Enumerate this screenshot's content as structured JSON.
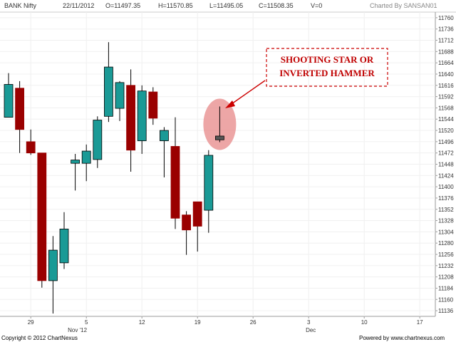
{
  "header": {
    "symbol": "BANK Nifty",
    "date": "22/11/2012",
    "open": "O=11497.35",
    "high": "H=11570.85",
    "low": "L=11495.05",
    "close": "C=11508.35",
    "volume": "V=0",
    "charted_by": "Charted By SANSAN01"
  },
  "footer": {
    "copyright": "Copyright © 2012 ChartNexus",
    "powered": "Powered by www.chartnexus.com"
  },
  "colors": {
    "up": "#1a9a96",
    "down": "#9a0000",
    "highlight_candle": "#555555",
    "annotation": "#cc0000",
    "ellipse": "#e89090"
  },
  "chart_data": {
    "type": "candlestick",
    "y_ticks": [
      11136,
      11160,
      11184,
      11208,
      11232,
      11256,
      11280,
      11304,
      11328,
      11352,
      11376,
      11400,
      11424,
      11448,
      11472,
      11496,
      11520,
      11544,
      11568,
      11592,
      11616,
      11640,
      11664,
      11688,
      11712,
      11736,
      11760
    ],
    "x_ticks": [
      {
        "label": "29",
        "slot": 2
      },
      {
        "label": "5",
        "slot": 7
      },
      {
        "label": "12",
        "slot": 12
      },
      {
        "label": "19",
        "slot": 17
      },
      {
        "label": "26",
        "slot": 22
      },
      {
        "label": "3",
        "slot": 27
      },
      {
        "label": "10",
        "slot": 32
      },
      {
        "label": "17",
        "slot": 37
      }
    ],
    "month_labels": [
      {
        "label": "Nov '12",
        "slot": 6
      },
      {
        "label": "Dec",
        "slot": 27
      }
    ],
    "candles": [
      {
        "o": 11548,
        "h": 11642,
        "l": 11548,
        "c": 11618
      },
      {
        "o": 11610,
        "h": 11625,
        "l": 11472,
        "c": 11522
      },
      {
        "o": 11496,
        "h": 11522,
        "l": 11468,
        "c": 11472
      },
      {
        "o": 11472,
        "h": 11472,
        "l": 11185,
        "c": 11200
      },
      {
        "o": 11200,
        "h": 11295,
        "l": 11130,
        "c": 11265
      },
      {
        "o": 11238,
        "h": 11346,
        "l": 11225,
        "c": 11310
      },
      {
        "o": 11450,
        "h": 11470,
        "l": 11392,
        "c": 11457
      },
      {
        "o": 11450,
        "h": 11490,
        "l": 11412,
        "c": 11476
      },
      {
        "o": 11458,
        "h": 11550,
        "l": 11440,
        "c": 11542
      },
      {
        "o": 11550,
        "h": 11708,
        "l": 11538,
        "c": 11655
      },
      {
        "o": 11567,
        "h": 11625,
        "l": 11540,
        "c": 11622
      },
      {
        "o": 11616,
        "h": 11650,
        "l": 11432,
        "c": 11478
      },
      {
        "o": 11498,
        "h": 11616,
        "l": 11470,
        "c": 11604
      },
      {
        "o": 11602,
        "h": 11612,
        "l": 11532,
        "c": 11546
      },
      {
        "o": 11498,
        "h": 11527,
        "l": 11420,
        "c": 11520
      },
      {
        "o": 11486,
        "h": 11548,
        "l": 11310,
        "c": 11333
      },
      {
        "o": 11340,
        "h": 11348,
        "l": 11255,
        "c": 11308
      },
      {
        "o": 11368,
        "h": 11368,
        "l": 11262,
        "c": 11316
      },
      {
        "o": 11350,
        "h": 11478,
        "l": 11302,
        "c": 11467
      },
      {
        "o": 11500,
        "h": 11571,
        "l": 11495,
        "c": 11508,
        "highlight": true
      }
    ],
    "annotation": "SHOOTING STAR OR INVERTED HAMMER",
    "annotation_lines": [
      "SHOOTING STAR OR",
      "INVERTED HAMMER"
    ]
  }
}
